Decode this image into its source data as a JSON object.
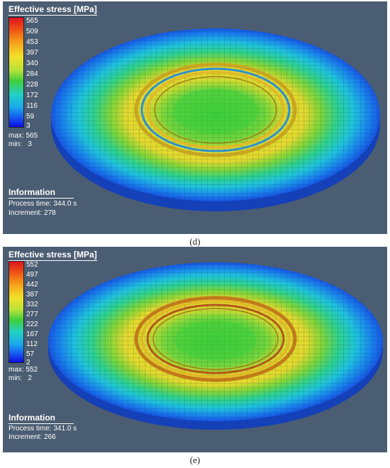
{
  "panels": [
    {
      "id": "d",
      "legend_title": "Effective stress [MPa]",
      "ticks": [
        "565",
        "509",
        "453",
        "397",
        "340",
        "284",
        "228",
        "172",
        "116",
        "59",
        "3"
      ],
      "max_label": "max:",
      "max_value": "565",
      "min_label": "min:",
      "min_value": "3",
      "info_title": "Information",
      "process_time": "Process time: 344.0 s",
      "increment": "Increment: 278",
      "caption": "(d)"
    },
    {
      "id": "e",
      "legend_title": "Effective stress [MPa]",
      "ticks": [
        "552",
        "497",
        "442",
        "387",
        "332",
        "277",
        "222",
        "167",
        "112",
        "57",
        "2"
      ],
      "max_label": "max:",
      "max_value": "552",
      "min_label": "min:",
      "min_value": "2",
      "info_title": "Information",
      "process_time": "Process time: 341.0 s",
      "increment": "Increment: 266",
      "caption": "(e)"
    }
  ],
  "colors": {
    "background": "#4b5d72",
    "stress_high": "#e0141e",
    "stress_mid": "#3fcf3c",
    "stress_low": "#0c0ae6",
    "rim": "#1a4fd0"
  }
}
